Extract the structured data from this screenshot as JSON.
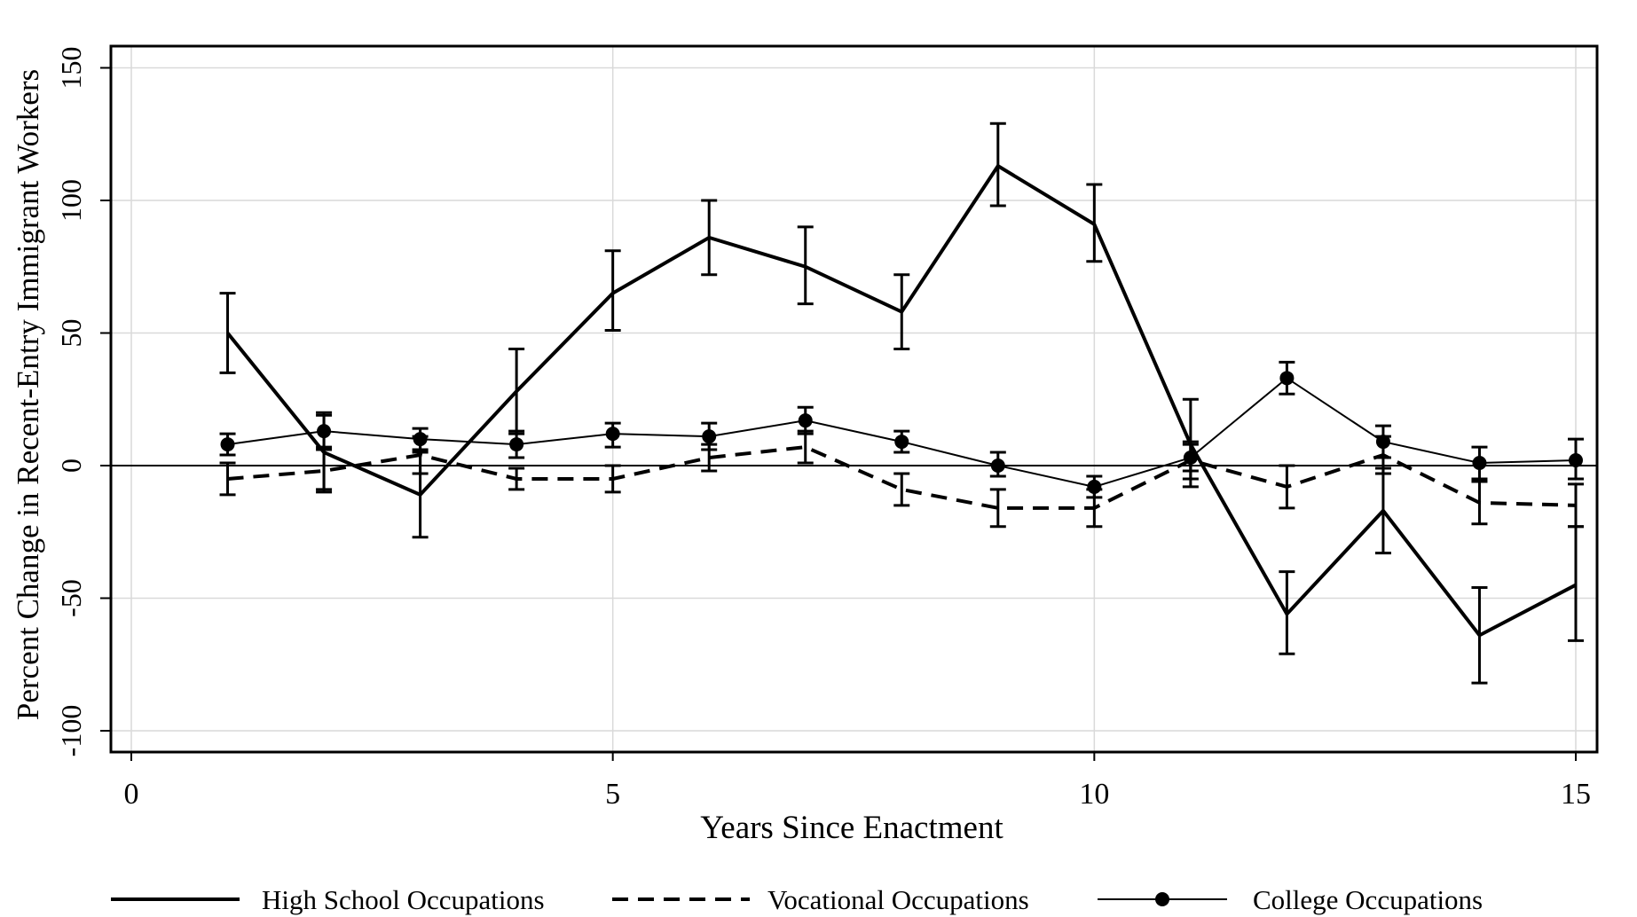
{
  "chart_data": {
    "type": "line",
    "xlabel": "Years Since Enactment",
    "ylabel": "Percent Change in Recent-Entry Immigrant Workers",
    "xlim": [
      0,
      15
    ],
    "ylim": [
      -108,
      158
    ],
    "xticks": [
      0,
      5,
      10,
      15
    ],
    "yticks": [
      -100,
      -50,
      0,
      50,
      100,
      150
    ],
    "grid": true,
    "zero_line": true,
    "legend_position": "bottom",
    "x": [
      1,
      2,
      3,
      4,
      5,
      6,
      7,
      8,
      9,
      10,
      11,
      12,
      13,
      14,
      15
    ],
    "series": [
      {
        "name": "High School Occupations",
        "style": "solid-thick",
        "values": [
          50,
          5,
          -11,
          28,
          65,
          86,
          75,
          58,
          113,
          91,
          8,
          -56,
          -17,
          -64,
          -45
        ],
        "ci_low": [
          35,
          -9,
          -27,
          12,
          51,
          72,
          61,
          44,
          98,
          77,
          -8,
          -71,
          -33,
          -82,
          -66
        ],
        "ci_high": [
          65,
          19,
          5,
          44,
          81,
          100,
          90,
          72,
          129,
          106,
          25,
          -40,
          -1,
          -46,
          -23
        ]
      },
      {
        "name": "Vocational Occupations",
        "style": "dashed",
        "values": [
          -5,
          -2,
          4,
          -5,
          -5,
          3,
          7,
          -9,
          -16,
          -16,
          2,
          -8,
          4,
          -14,
          -15
        ],
        "ci_low": [
          -11,
          -10,
          -3,
          -9,
          -10,
          -2,
          1,
          -15,
          -23,
          -23,
          -5,
          -16,
          -3,
          -22,
          -23
        ],
        "ci_high": [
          1,
          6,
          11,
          -1,
          0,
          8,
          13,
          -3,
          -9,
          -9,
          9,
          0,
          11,
          -6,
          -7
        ]
      },
      {
        "name": "College Occupations",
        "style": "solid-thin-markers",
        "values": [
          8,
          13,
          10,
          8,
          12,
          11,
          17,
          9,
          0,
          -8,
          3,
          33,
          9,
          1,
          2
        ],
        "ci_low": [
          4,
          7,
          6,
          3,
          7,
          6,
          12,
          5,
          -4,
          -12,
          -2,
          27,
          3,
          -5,
          -5
        ],
        "ci_high": [
          12,
          20,
          14,
          13,
          16,
          16,
          22,
          13,
          5,
          -4,
          8,
          39,
          15,
          7,
          10
        ]
      }
    ],
    "colors": {
      "line": "#000000",
      "grid": "#d9d9d9",
      "background": "#ffffff"
    }
  }
}
